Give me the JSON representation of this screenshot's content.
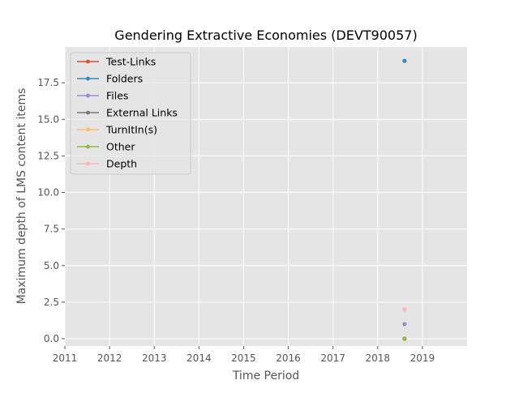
{
  "chart_data": {
    "type": "line",
    "title": "Gendering Extractive Economies (DEVT90057)",
    "xlabel": "Time Period",
    "ylabel": "Maximum depth of LMS content items",
    "xlim": [
      2011,
      2020
    ],
    "ylim": [
      -0.5,
      19.95
    ],
    "x_ticks": [
      2011,
      2012,
      2013,
      2014,
      2015,
      2016,
      2017,
      2018,
      2019
    ],
    "x_tick_labels": [
      "2011",
      "2012",
      "2013",
      "2014",
      "2015",
      "2016",
      "2017",
      "2018",
      "2019"
    ],
    "y_ticks": [
      0,
      2.5,
      5,
      7.5,
      10,
      12.5,
      15,
      17.5
    ],
    "y_tick_labels": [
      "0.0",
      "2.5",
      "5.0",
      "7.5",
      "10.0",
      "12.5",
      "15.0",
      "17.5"
    ],
    "grid": true,
    "legend_position": "top-left",
    "series": [
      {
        "name": "Test-Links",
        "color": "#E24A33",
        "x": [
          2018.6
        ],
        "y": [
          0
        ]
      },
      {
        "name": "Folders",
        "color": "#348ABD",
        "x": [
          2018.6
        ],
        "y": [
          19
        ]
      },
      {
        "name": "Files",
        "color": "#988ED5",
        "x": [
          2018.6
        ],
        "y": [
          1
        ]
      },
      {
        "name": "External Links",
        "color": "#777777",
        "x": [
          2018.6
        ],
        "y": [
          0
        ]
      },
      {
        "name": "TurnItIn(s)",
        "color": "#FBC15E",
        "x": [
          2018.6
        ],
        "y": [
          0
        ]
      },
      {
        "name": "Other",
        "color": "#8EBA42",
        "x": [
          2018.6
        ],
        "y": [
          0
        ]
      },
      {
        "name": "Depth",
        "color": "#FFB5B8",
        "x": [
          2018.6
        ],
        "y": [
          2
        ]
      }
    ]
  }
}
